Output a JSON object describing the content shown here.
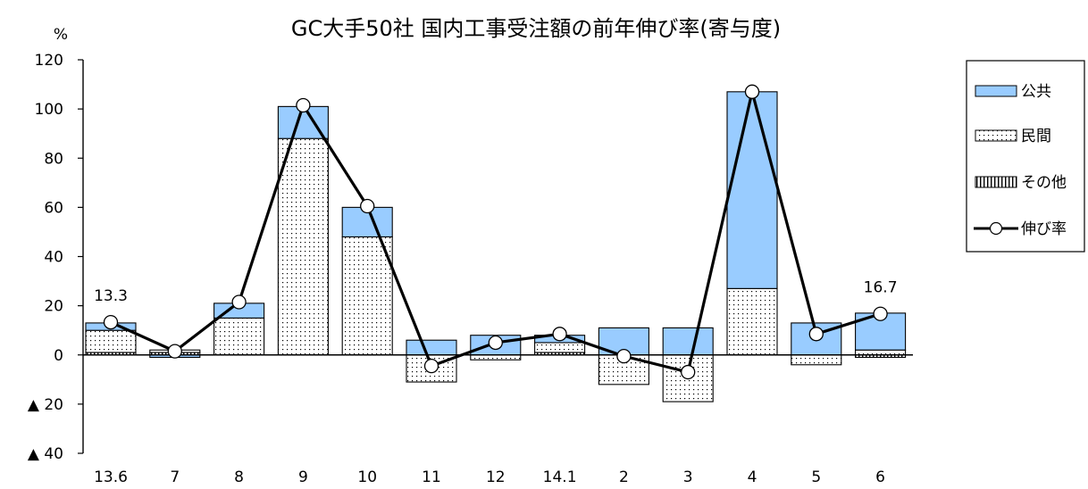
{
  "chart_data": {
    "type": "bar",
    "title": "GC大手50社 国内工事受注額の前年伸び率(寄与度)",
    "y_unit": "%",
    "ylim": [
      -40,
      120
    ],
    "y_ticks": [
      {
        "value": 120,
        "label": "120"
      },
      {
        "value": 100,
        "label": "100"
      },
      {
        "value": 80,
        "label": "80"
      },
      {
        "value": 60,
        "label": "60"
      },
      {
        "value": 40,
        "label": "40"
      },
      {
        "value": 20,
        "label": "20"
      },
      {
        "value": 0,
        "label": "0"
      },
      {
        "value": -20,
        "label": "▲ 20"
      },
      {
        "value": -40,
        "label": "▲ 40"
      }
    ],
    "categories": [
      "13.6",
      "7",
      "8",
      "9",
      "10",
      "11",
      "12",
      "14.1",
      "2",
      "3",
      "4",
      "5",
      "6"
    ],
    "stacked": true,
    "grid": false,
    "legend_position": "right",
    "series": [
      {
        "name": "公共",
        "kind": "bar",
        "pattern": "solid",
        "color": "#99CCFF",
        "values": [
          3,
          -1,
          6,
          13,
          12,
          6,
          8,
          3,
          11,
          11,
          80,
          13,
          15
        ]
      },
      {
        "name": "民間",
        "kind": "bar",
        "pattern": "dots",
        "color": "#FFFFFF",
        "values": [
          9,
          1,
          15,
          88,
          48,
          -11,
          -2,
          4,
          -12,
          -19,
          27,
          -4,
          2
        ]
      },
      {
        "name": "その他",
        "kind": "bar",
        "pattern": "vlines",
        "color": "#FFFFFF",
        "values": [
          1,
          1,
          0,
          0,
          0,
          0,
          0,
          1,
          0,
          0,
          0,
          0,
          -1
        ]
      },
      {
        "name": "伸び率",
        "kind": "line",
        "color": "#000000",
        "values": [
          13.3,
          1.5,
          21.5,
          101.5,
          60.5,
          -4.5,
          5,
          8.5,
          -0.5,
          -7,
          107,
          8.5,
          16.7
        ]
      }
    ],
    "annotations": [
      {
        "category_index": 0,
        "value": 13.3,
        "text": "13.3"
      },
      {
        "category_index": 12,
        "value": 16.7,
        "text": "16.7"
      }
    ]
  }
}
